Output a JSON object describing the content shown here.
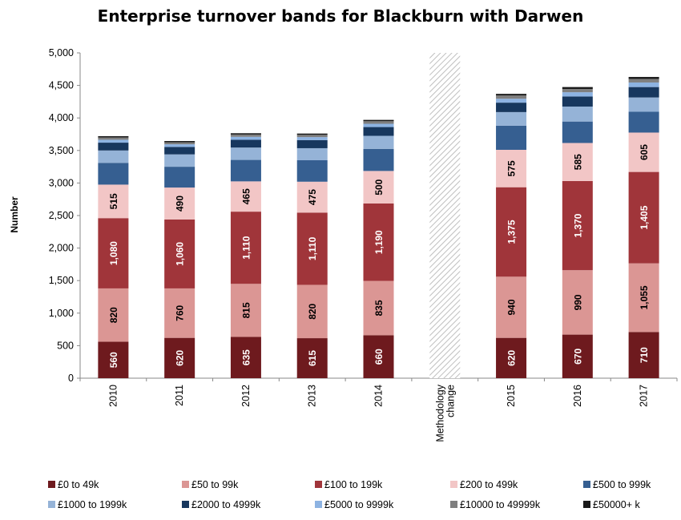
{
  "chart_data": {
    "type": "bar",
    "stacked": true,
    "title": "Enterprise turnover bands for Blackburn with Darwen",
    "ylabel": "Number",
    "xlabel": "",
    "ylim": [
      0,
      5000
    ],
    "yticks": [
      0,
      500,
      1000,
      1500,
      2000,
      2500,
      3000,
      3500,
      4000,
      4500,
      5000
    ],
    "ytick_labels": [
      "0",
      "500",
      "1,000",
      "1,500",
      "2,000",
      "2,500",
      "3,000",
      "3,500",
      "4,000",
      "4,500",
      "5,000"
    ],
    "grid": false,
    "legend_position": "bottom",
    "categories": [
      "2010",
      "2011",
      "2012",
      "2013",
      "2014",
      "Methodology change",
      "2015",
      "2016",
      "2017"
    ],
    "gap_category": {
      "label": "Methodology change",
      "pattern": "hatched",
      "value": 5000
    },
    "series": [
      {
        "name": "£0 to 49k",
        "color": "#6e1a1e",
        "label_color": "#ffffff",
        "values": [
          560,
          620,
          635,
          615,
          660,
          null,
          620,
          670,
          710
        ],
        "labels": [
          "560",
          "620",
          "635",
          "615",
          "660",
          "",
          "620",
          "670",
          "710"
        ]
      },
      {
        "name": "£50 to 99k",
        "color": "#db9694",
        "label_color": "#000000",
        "values": [
          820,
          760,
          815,
          820,
          835,
          null,
          940,
          990,
          1055
        ],
        "labels": [
          "820",
          "760",
          "815",
          "820",
          "835",
          "",
          "940",
          "990",
          "1,055"
        ]
      },
      {
        "name": "£100 to 199k",
        "color": "#a0353a",
        "label_color": "#ffffff",
        "values": [
          1080,
          1060,
          1110,
          1110,
          1190,
          null,
          1375,
          1370,
          1405
        ],
        "labels": [
          "1,080",
          "1,060",
          "1,110",
          "1,110",
          "1,190",
          "",
          "1,375",
          "1,370",
          "1,405"
        ]
      },
      {
        "name": "£200 to 499k",
        "color": "#f2c6c6",
        "label_color": "#000000",
        "values": [
          515,
          490,
          465,
          475,
          500,
          null,
          575,
          585,
          605
        ],
        "labels": [
          "515",
          "490",
          "465",
          "475",
          "500",
          "",
          "575",
          "585",
          "605"
        ]
      },
      {
        "name": "£500 to 999k",
        "color": "#365f91",
        "label_color": "#ffffff",
        "values": [
          335,
          320,
          330,
          330,
          340,
          null,
          370,
          330,
          320
        ],
        "labels": []
      },
      {
        "name": "£1000 to 1999k",
        "color": "#95b3d7",
        "label_color": "#000000",
        "values": [
          190,
          190,
          190,
          185,
          200,
          null,
          210,
          230,
          220
        ],
        "labels": []
      },
      {
        "name": "£2000 to 4999k",
        "color": "#17375e",
        "label_color": "#ffffff",
        "values": [
          120,
          115,
          120,
          125,
          135,
          null,
          145,
          155,
          160
        ],
        "labels": []
      },
      {
        "name": "£5000 to 9999k",
        "color": "#8db3e2",
        "label_color": "#000000",
        "values": [
          45,
          40,
          45,
          45,
          50,
          null,
          60,
          65,
          70
        ],
        "labels": []
      },
      {
        "name": "£10000 to 49999k",
        "color": "#7f7f7f",
        "label_color": "#ffffff",
        "values": [
          35,
          30,
          35,
          35,
          40,
          null,
          50,
          50,
          55
        ],
        "labels": []
      },
      {
        "name": "£50000+ k",
        "color": "#1a1a1a",
        "label_color": "#ffffff",
        "values": [
          20,
          20,
          20,
          20,
          20,
          null,
          25,
          30,
          30
        ],
        "labels": []
      }
    ]
  }
}
